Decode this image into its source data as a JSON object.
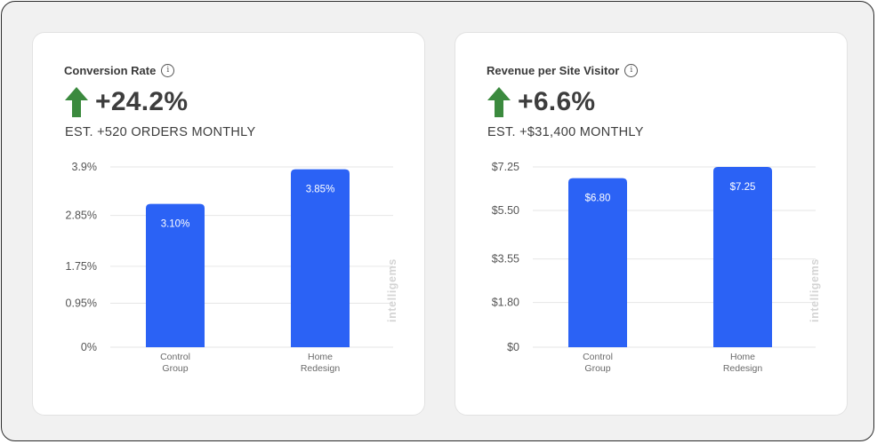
{
  "watermark_text": "intelligems",
  "colors": {
    "bar": "#2b62f5",
    "arrow": "#3b8a3e",
    "grid": "#e6e6e6",
    "axis_text": "#555555"
  },
  "cards": [
    {
      "title": "Conversion Rate",
      "value": "+24.2%",
      "estimate": "EST. +520 ORDERS MONTHLY"
    },
    {
      "title": "Revenue per Site Visitor",
      "value": "+6.6%",
      "estimate": "EST. +$31,400 MONTHLY"
    }
  ],
  "chart_data": [
    {
      "type": "bar",
      "title": "Conversion Rate",
      "categories": [
        [
          "Control",
          "Group"
        ],
        [
          "Home",
          "Redesign"
        ]
      ],
      "values": [
        3.1,
        3.85
      ],
      "data_labels": [
        "3.10%",
        "3.85%"
      ],
      "yticks": [
        0,
        0.95,
        1.75,
        2.85,
        3.9
      ],
      "ytick_labels": [
        "0%",
        "0.95%",
        "1.75%",
        "2.85%",
        "3.9%"
      ],
      "ylim": [
        0,
        3.9
      ],
      "grid": true
    },
    {
      "type": "bar",
      "title": "Revenue per Site Visitor",
      "categories": [
        [
          "Control",
          "Group"
        ],
        [
          "Home",
          "Redesign"
        ]
      ],
      "values": [
        6.8,
        7.25
      ],
      "data_labels": [
        "$6.80",
        "$7.25"
      ],
      "yticks": [
        0,
        1.8,
        3.55,
        5.5,
        7.25
      ],
      "ytick_labels": [
        "$0",
        "$1.80",
        "$3.55",
        "$5.50",
        "$7.25"
      ],
      "ylim": [
        0,
        7.25
      ],
      "grid": true
    }
  ]
}
